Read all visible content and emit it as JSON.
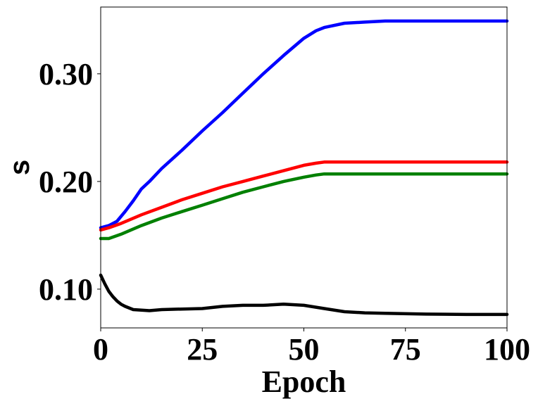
{
  "chart_data": {
    "type": "line",
    "title": "",
    "xlabel": "Epoch",
    "ylabel": "s",
    "xlim": [
      0,
      100
    ],
    "ylim": [
      0.064,
      0.362
    ],
    "xticks": [
      0,
      25,
      50,
      75,
      100
    ],
    "xtick_labels": [
      "0",
      "25",
      "50",
      "75",
      "100"
    ],
    "yticks": [
      0.1,
      0.2,
      0.3
    ],
    "ytick_labels": [
      "0.10",
      "0.20",
      "0.30"
    ],
    "grid": false,
    "legend": "none",
    "series": [
      {
        "name": "blue",
        "color": "#0000ff",
        "x": [
          0,
          2,
          4,
          6,
          8,
          10,
          12,
          15,
          20,
          25,
          30,
          35,
          40,
          45,
          50,
          53,
          55,
          60,
          65,
          70,
          80,
          90,
          100
        ],
        "y": [
          0.157,
          0.159,
          0.163,
          0.172,
          0.182,
          0.193,
          0.2,
          0.212,
          0.229,
          0.247,
          0.264,
          0.282,
          0.3,
          0.317,
          0.333,
          0.34,
          0.343,
          0.347,
          0.348,
          0.349,
          0.349,
          0.349,
          0.349
        ]
      },
      {
        "name": "red",
        "color": "#ff0000",
        "x": [
          0,
          2,
          5,
          10,
          15,
          20,
          25,
          30,
          35,
          40,
          45,
          50,
          53,
          55,
          60,
          70,
          80,
          90,
          100
        ],
        "y": [
          0.155,
          0.157,
          0.161,
          0.169,
          0.176,
          0.183,
          0.189,
          0.195,
          0.2,
          0.205,
          0.21,
          0.215,
          0.217,
          0.218,
          0.218,
          0.218,
          0.218,
          0.218,
          0.218
        ]
      },
      {
        "name": "green",
        "color": "#008000",
        "x": [
          0,
          2,
          5,
          10,
          15,
          20,
          25,
          30,
          35,
          40,
          45,
          50,
          53,
          55,
          60,
          70,
          80,
          90,
          100
        ],
        "y": [
          0.147,
          0.147,
          0.151,
          0.159,
          0.166,
          0.172,
          0.178,
          0.184,
          0.19,
          0.195,
          0.2,
          0.204,
          0.206,
          0.207,
          0.207,
          0.207,
          0.207,
          0.207,
          0.207
        ]
      },
      {
        "name": "black",
        "color": "#000000",
        "x": [
          0,
          1,
          2,
          3,
          4,
          5,
          6,
          8,
          10,
          12,
          15,
          20,
          25,
          30,
          35,
          40,
          45,
          50,
          55,
          60,
          65,
          70,
          80,
          90,
          100
        ],
        "y": [
          0.113,
          0.105,
          0.098,
          0.093,
          0.089,
          0.086,
          0.084,
          0.081,
          0.0805,
          0.08,
          0.081,
          0.0815,
          0.082,
          0.084,
          0.085,
          0.085,
          0.086,
          0.085,
          0.082,
          0.079,
          0.078,
          0.0775,
          0.0768,
          0.0765,
          0.0765
        ]
      }
    ]
  }
}
